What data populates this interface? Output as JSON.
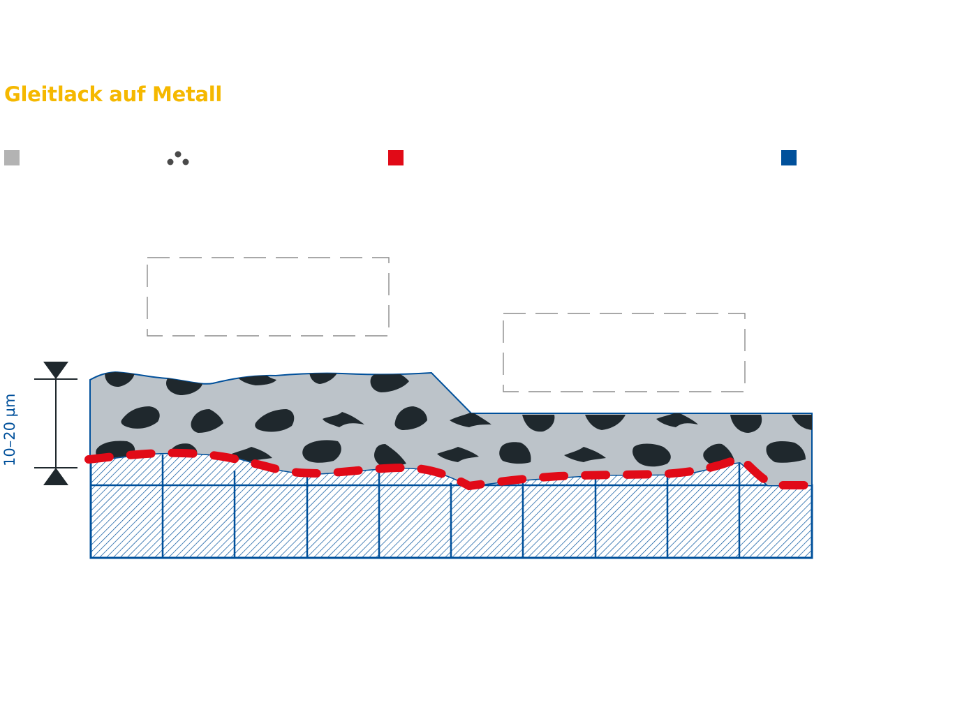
{
  "title": "Gleitlack auf Metall",
  "thickness_label": "10–20 µm",
  "colors": {
    "title": "#f5b800",
    "coating": "#bcc3c9",
    "particles": "#1f282d",
    "interface_line": "#e10a17",
    "metal": "#00509b",
    "legend_coating": "#b3b3b3",
    "legend_particles": "#4a4a4a",
    "legend_interface": "#e10a17",
    "legend_metal": "#00509b",
    "callout_border": "#8c8c8c",
    "dimension": "#1f282d"
  },
  "legend": [
    {
      "icon": "coating-swatch-icon"
    },
    {
      "icon": "particles-dots-icon"
    },
    {
      "icon": "interface-swatch-icon"
    },
    {
      "icon": "metal-swatch-icon"
    }
  ]
}
